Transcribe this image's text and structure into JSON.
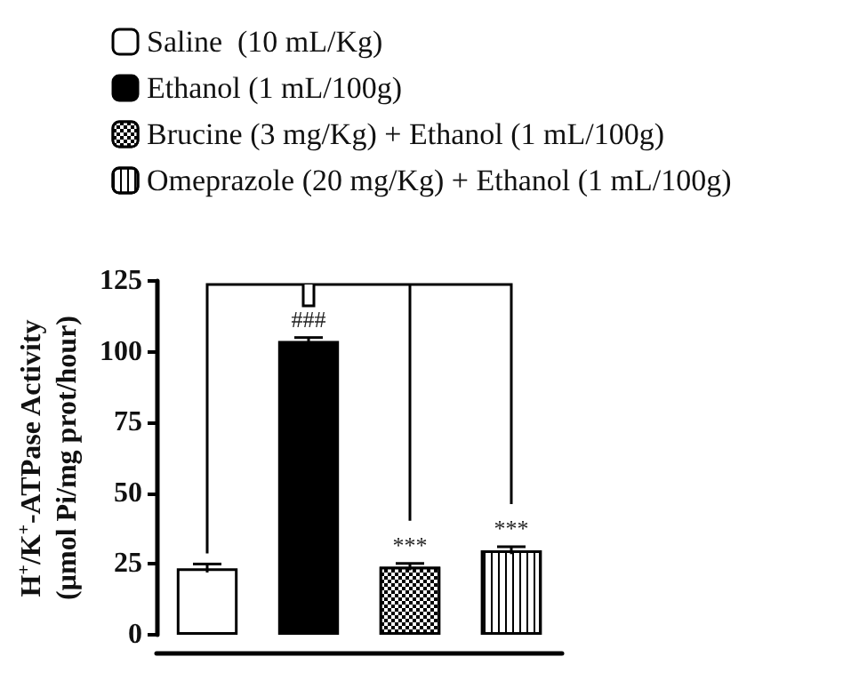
{
  "chart_data": {
    "type": "bar",
    "ylabel": "H$^{+}$/K$^{+}$-ATPase Activity\n(µmol Pi/mg prot/hour)",
    "categories": [
      null,
      null,
      null,
      null
    ],
    "series": [
      {
        "name": "Saline  (10 mL/Kg)",
        "color": "#ffffff",
        "values": [
          23.5,
          null,
          null,
          null
        ],
        "errors": [
          1.5,
          null,
          null,
          null
        ]
      },
      {
        "name": "Ethanol (1 mL/100g)",
        "color": "#000000",
        "values": [
          null,
          103.8,
          null,
          null
        ],
        "errors": [
          null,
          1.2,
          null,
          null
        ],
        "value_labels": [
          null,
          "###",
          null,
          null
        ]
      },
      {
        "name": "Brucine (3 mg/Kg) + Ethanol (1 mL/100g)",
        "color": "#000000",
        "values": [
          null,
          null,
          24,
          null
        ],
        "errors": [
          null,
          null,
          1.2,
          null
        ],
        "value_labels": [
          null,
          null,
          "***",
          null
        ]
      },
      {
        "name": "Omeprazole (20 mg/Kg) + Ethanol (1 mL/100g)",
        "color": "#ffffff",
        "values": [
          null,
          null,
          null,
          29.8
        ],
        "errors": [
          null,
          null,
          null,
          1.3
        ],
        "value_labels": [
          null,
          null,
          null,
          "***"
        ]
      }
    ],
    "ylim": [
      0,
      125
    ],
    "yticks": [
      0,
      25,
      50,
      75,
      100,
      125
    ],
    "tick_labels": "y",
    "grid": false,
    "legend": "top"
  }
}
